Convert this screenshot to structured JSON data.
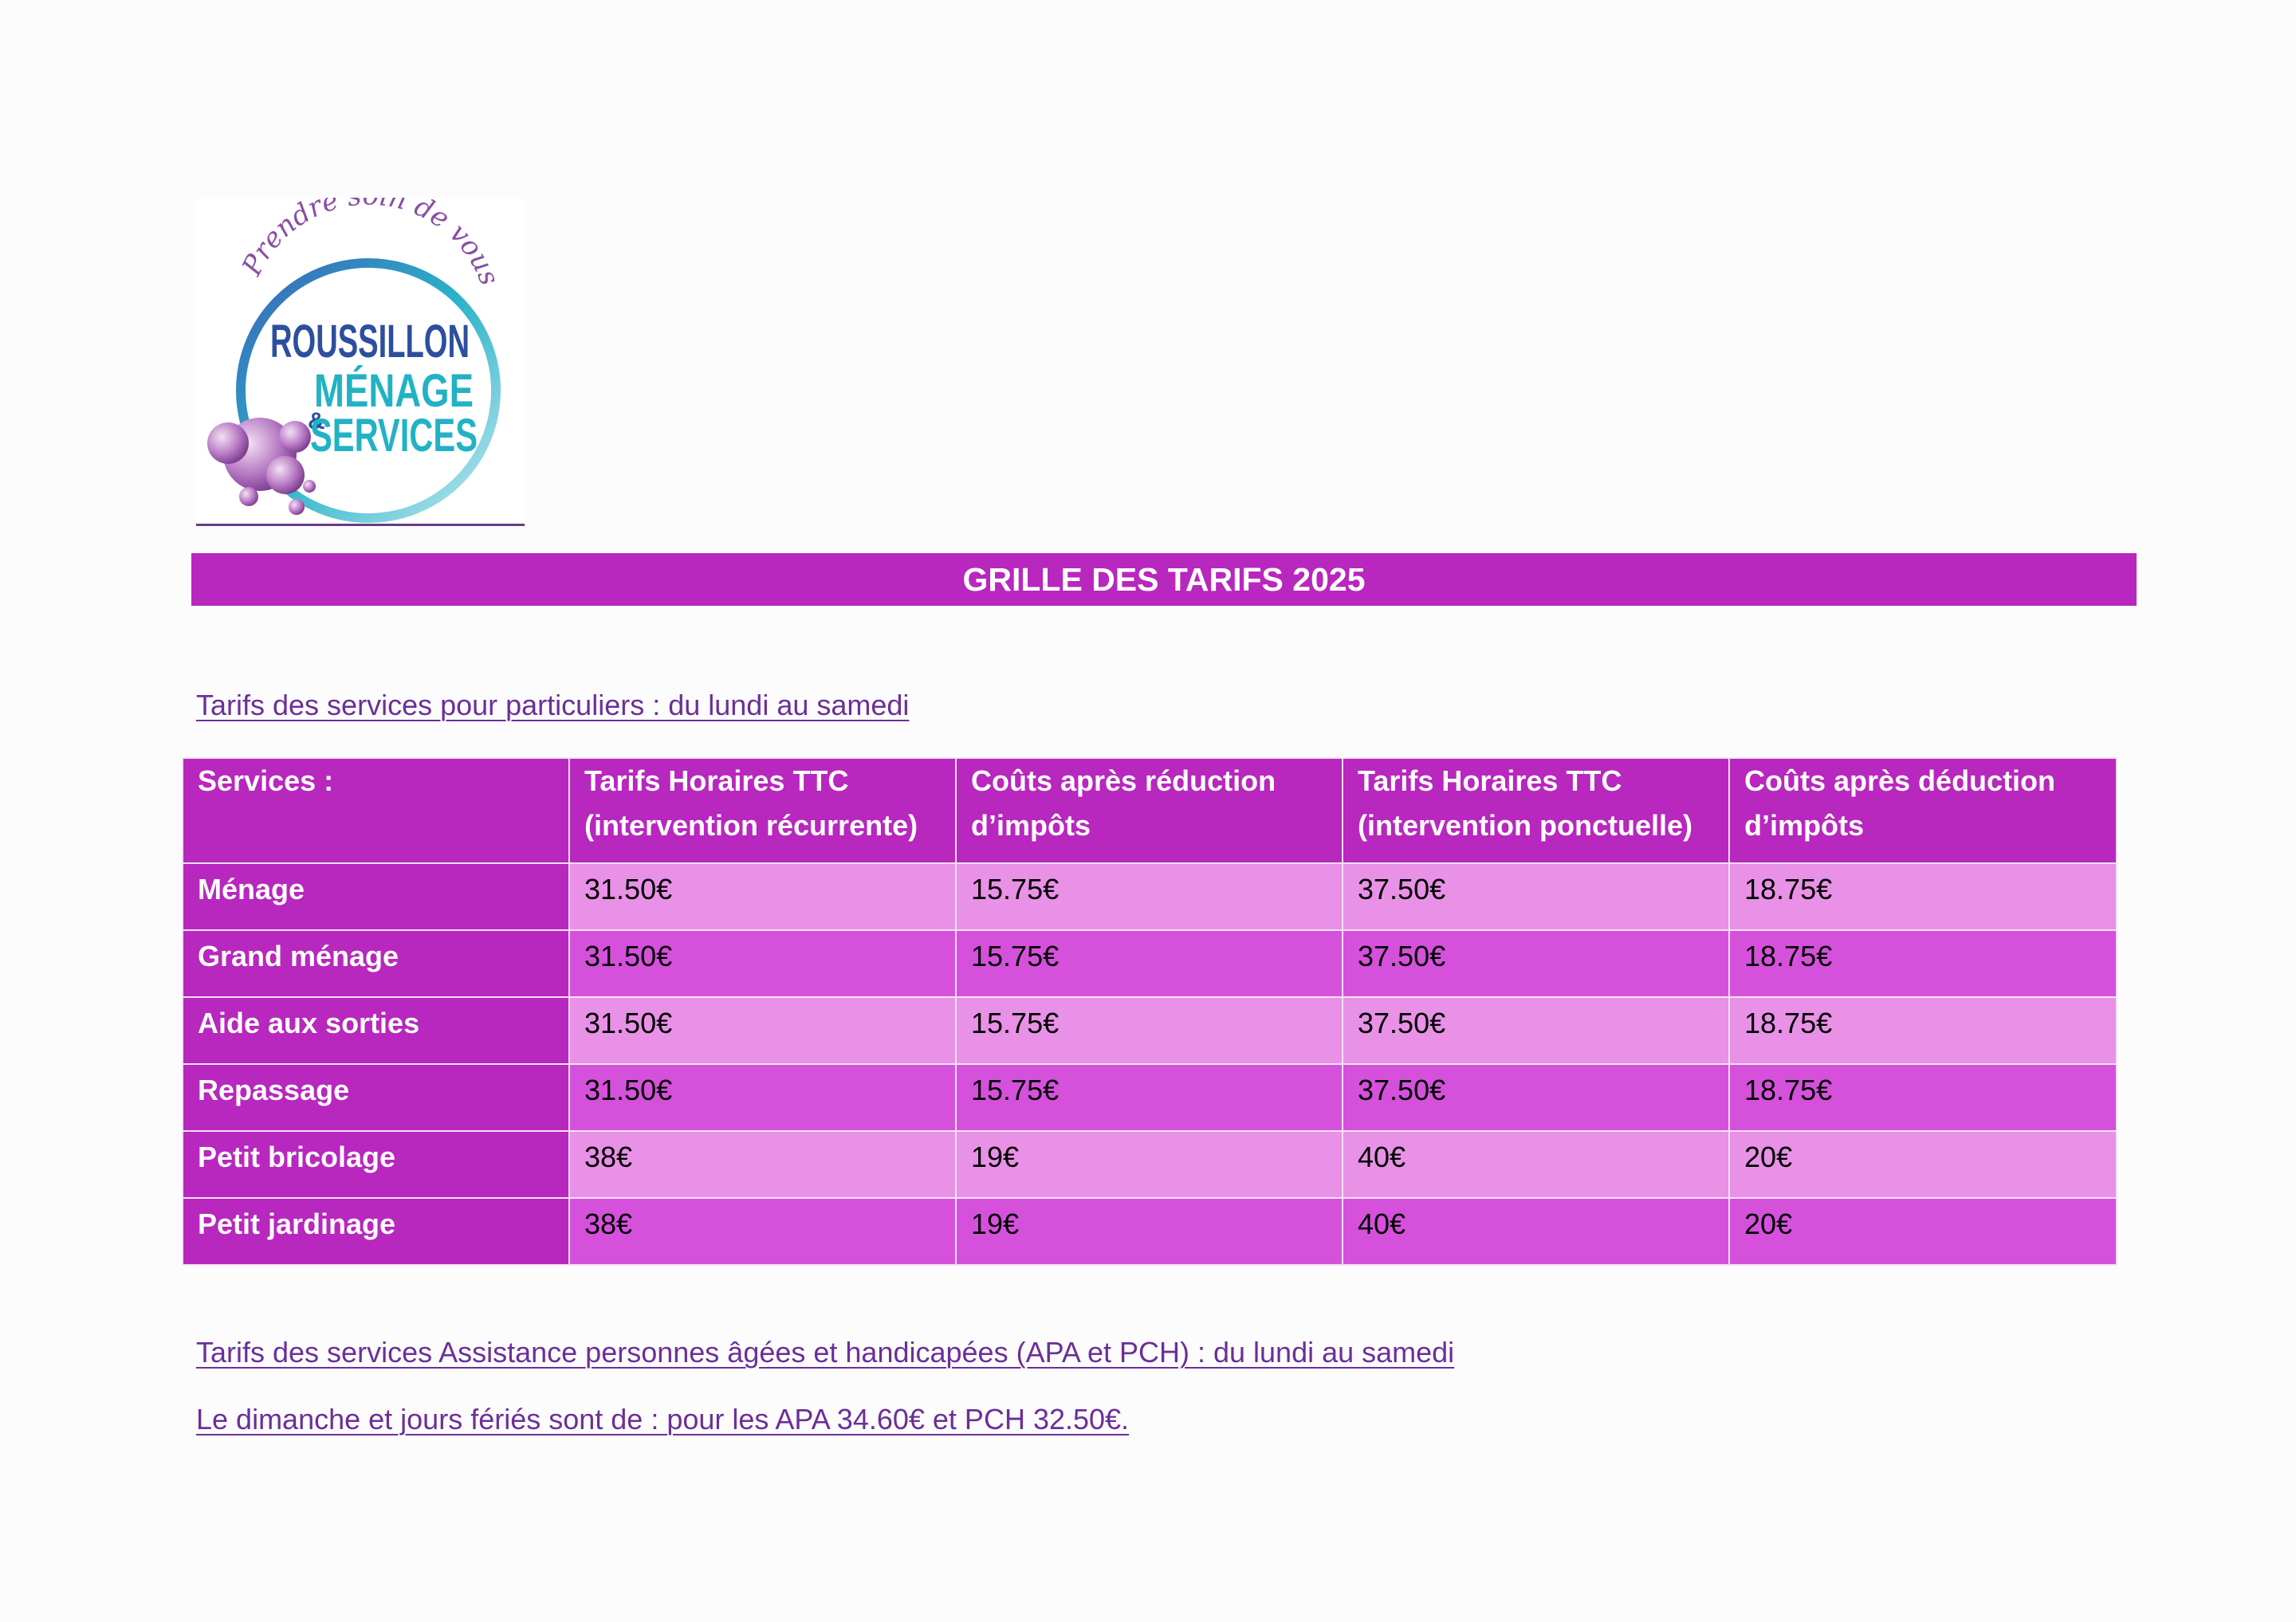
{
  "logo": {
    "tagline": "Prendre soin de vous",
    "line1": "ROUSSILLON",
    "line2": "MÉNAGE",
    "ampersand": "&",
    "line3": "SERVICES"
  },
  "banner": {
    "title": "GRILLE DES TARIFS 2025"
  },
  "section1": {
    "heading": "Tarifs des services pour particuliers : du lundi au samedi"
  },
  "table": {
    "headers": [
      [
        "Services :",
        ""
      ],
      [
        "Tarifs Horaires TTC",
        "(intervention récurrente)"
      ],
      [
        "Coûts après réduction",
        "d’impôts"
      ],
      [
        "Tarifs Horaires TTC",
        "(intervention ponctuelle)"
      ],
      [
        "Coûts après déduction",
        "d’impôts"
      ]
    ],
    "rows": [
      {
        "service": "Ménage",
        "values": [
          "31.50€",
          "15.75€",
          "37.50€",
          "18.75€"
        ]
      },
      {
        "service": "Grand ménage",
        "values": [
          "31.50€",
          "15.75€",
          "37.50€",
          "18.75€"
        ]
      },
      {
        "service": "Aide aux sorties",
        "values": [
          "31.50€",
          "15.75€",
          "37.50€",
          "18.75€"
        ]
      },
      {
        "service": "Repassage",
        "values": [
          "31.50€",
          "15.75€",
          "37.50€",
          "18.75€"
        ]
      },
      {
        "service": "Petit bricolage",
        "values": [
          "38€",
          "19€",
          "40€",
          "20€"
        ]
      },
      {
        "service": "Petit jardinage",
        "values": [
          "38€",
          "19€",
          "40€",
          "20€"
        ]
      }
    ]
  },
  "section2": {
    "heading": "Tarifs des services Assistance personnes âgées et handicapées (APA et PCH) : du lundi au samedi"
  },
  "section3": {
    "note": "Le dimanche et jours fériés sont de : pour les APA 34.60€ et PCH 32.50€."
  },
  "colors": {
    "banner": "#b827be",
    "row_light": "#e891e7",
    "row_dark": "#d551dc",
    "link": "#6b2f99"
  }
}
